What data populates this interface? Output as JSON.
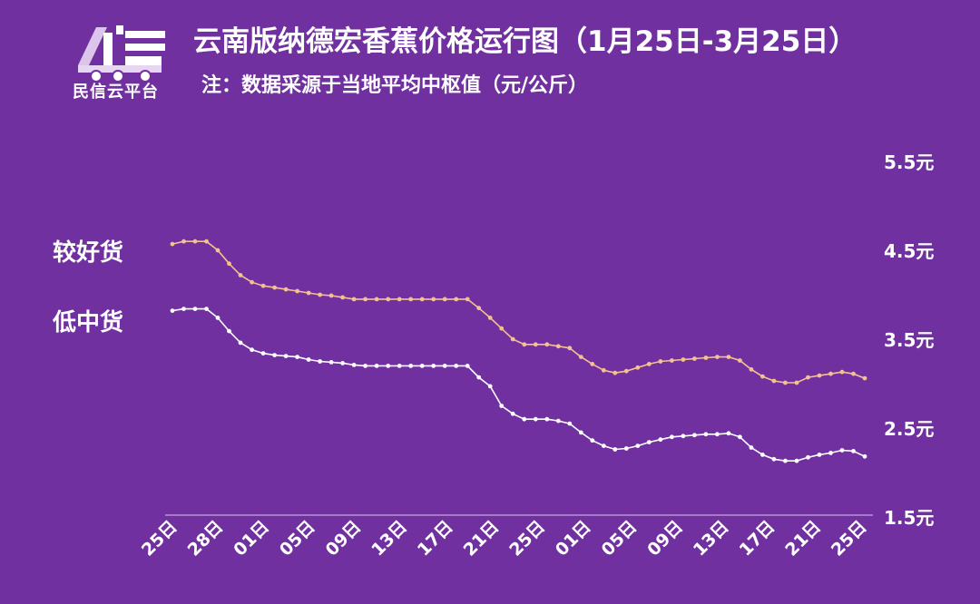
{
  "logo": {
    "text": "民信云平台",
    "icon": "truck-logo-icon"
  },
  "title": "云南版纳德宏香蕉价格运行图（1月25日-3月25日）",
  "subtitle": "注：数据采源于当地平均中枢值（元/公斤）",
  "colors": {
    "background": "#7030a0",
    "better": "#f4c28f",
    "lower": "#ffffff"
  },
  "chart_data": {
    "type": "line",
    "x_tick_labels": [
      "25日",
      "28日",
      "01日",
      "05日",
      "09日",
      "13日",
      "17日",
      "21日",
      "25日",
      "01日",
      "05日",
      "09日",
      "13日",
      "17日",
      "21日",
      "25日"
    ],
    "y_tick_labels": [
      "1.5元",
      "2.5元",
      "3.5元",
      "4.5元",
      "5.5元"
    ],
    "y_ticks": [
      1.5,
      2.5,
      3.5,
      4.5,
      5.5
    ],
    "ylim": [
      1.5,
      5.5
    ],
    "series": [
      {
        "name": "较好货",
        "values": [
          4.55,
          4.58,
          4.58,
          4.58,
          4.48,
          4.33,
          4.2,
          4.12,
          4.08,
          4.06,
          4.04,
          4.02,
          4.0,
          3.98,
          3.97,
          3.95,
          3.93,
          3.93,
          3.93,
          3.93,
          3.93,
          3.93,
          3.93,
          3.93,
          3.93,
          3.93,
          3.93,
          3.83,
          3.72,
          3.6,
          3.48,
          3.42,
          3.42,
          3.42,
          3.4,
          3.38,
          3.28,
          3.2,
          3.13,
          3.1,
          3.12,
          3.16,
          3.2,
          3.23,
          3.24,
          3.25,
          3.26,
          3.27,
          3.28,
          3.28,
          3.24,
          3.14,
          3.06,
          3.01,
          2.99,
          2.99,
          3.05,
          3.07,
          3.09,
          3.11,
          3.09,
          3.04
        ]
      },
      {
        "name": "低中货",
        "values": [
          3.8,
          3.82,
          3.82,
          3.82,
          3.72,
          3.57,
          3.44,
          3.36,
          3.32,
          3.3,
          3.29,
          3.28,
          3.25,
          3.23,
          3.22,
          3.21,
          3.19,
          3.18,
          3.18,
          3.18,
          3.18,
          3.18,
          3.18,
          3.18,
          3.18,
          3.18,
          3.18,
          3.05,
          2.95,
          2.73,
          2.64,
          2.58,
          2.58,
          2.58,
          2.56,
          2.53,
          2.43,
          2.34,
          2.28,
          2.24,
          2.25,
          2.28,
          2.32,
          2.35,
          2.38,
          2.39,
          2.4,
          2.41,
          2.41,
          2.42,
          2.38,
          2.26,
          2.18,
          2.13,
          2.11,
          2.11,
          2.15,
          2.18,
          2.2,
          2.23,
          2.22,
          2.16
        ]
      }
    ]
  }
}
